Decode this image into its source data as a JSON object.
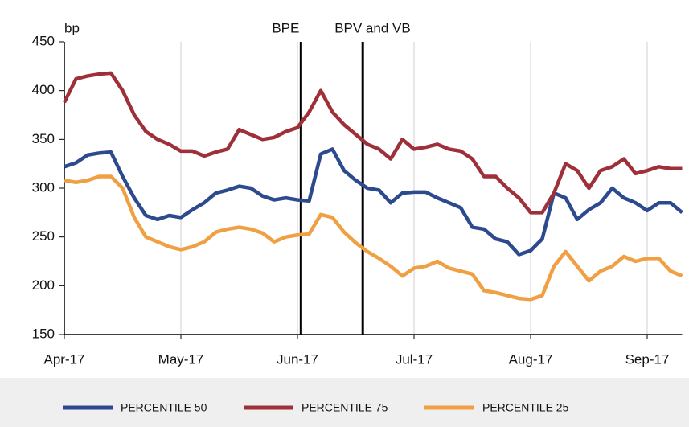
{
  "chart_data": {
    "type": "line",
    "y_label": "bp",
    "categories": [
      "Apr-17",
      null,
      null,
      null,
      null,
      null,
      null,
      null,
      null,
      null,
      "May-17",
      null,
      null,
      null,
      null,
      null,
      null,
      null,
      null,
      null,
      "Jun-17",
      null,
      null,
      null,
      null,
      null,
      null,
      null,
      null,
      null,
      "Jul-17",
      null,
      null,
      null,
      null,
      null,
      null,
      null,
      null,
      null,
      "Aug-17",
      null,
      null,
      null,
      null,
      null,
      null,
      null,
      null,
      null,
      "Sep-17",
      null,
      null,
      null
    ],
    "series": [
      {
        "name": "PERCENTILE 50",
        "color": "#2e4a8f",
        "values": [
          322,
          326,
          334,
          336,
          337,
          312,
          290,
          272,
          268,
          272,
          270,
          278,
          285,
          295,
          298,
          302,
          300,
          292,
          288,
          290,
          288,
          287,
          335,
          340,
          318,
          308,
          300,
          298,
          285,
          295,
          296,
          296,
          290,
          285,
          280,
          260,
          258,
          248,
          245,
          232,
          236,
          248,
          295,
          290,
          268,
          278,
          285,
          300,
          290,
          285,
          277,
          285,
          285,
          275
        ]
      },
      {
        "name": "PERCENTILE 75",
        "color": "#9e3039",
        "values": [
          388,
          412,
          415,
          417,
          418,
          400,
          375,
          358,
          350,
          345,
          338,
          338,
          333,
          337,
          340,
          360,
          355,
          350,
          352,
          358,
          362,
          378,
          400,
          378,
          365,
          355,
          345,
          340,
          330,
          350,
          340,
          342,
          345,
          340,
          338,
          330,
          312,
          312,
          300,
          290,
          275,
          275,
          295,
          325,
          318,
          300,
          318,
          322,
          330,
          315,
          318,
          322,
          320,
          320
        ]
      },
      {
        "name": "PERCENTILE 25",
        "color": "#f0a042",
        "values": [
          308,
          306,
          308,
          312,
          312,
          300,
          270,
          250,
          245,
          240,
          237,
          240,
          245,
          255,
          258,
          260,
          258,
          254,
          245,
          250,
          252,
          253,
          273,
          270,
          255,
          244,
          235,
          228,
          220,
          210,
          218,
          220,
          225,
          218,
          215,
          212,
          195,
          193,
          190,
          187,
          186,
          190,
          220,
          235,
          220,
          205,
          215,
          220,
          230,
          225,
          228,
          228,
          215,
          210
        ]
      }
    ],
    "annotations": [
      {
        "text": "BPE",
        "x": 20.3
      },
      {
        "text": "BPV and VB",
        "x": 25.6
      }
    ],
    "ylim": [
      150,
      450
    ],
    "yticks": [
      150,
      200,
      250,
      300,
      350,
      400,
      450
    ],
    "x_grid": true
  }
}
